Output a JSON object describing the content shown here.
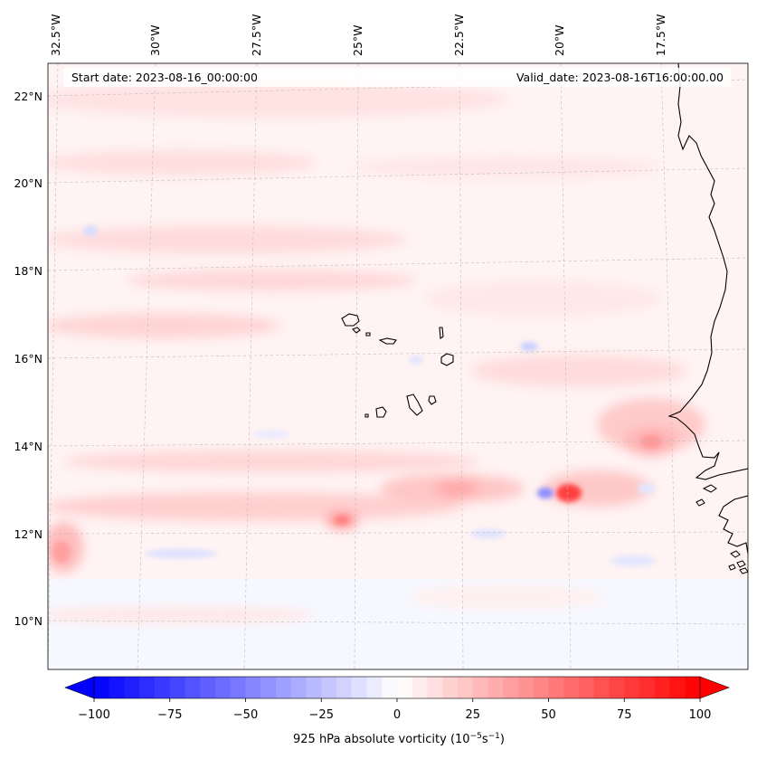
{
  "header": {
    "start_date": "Start date: 2023-08-16_00:00:00",
    "valid_date": "Valid_date: 2023-08-16T16:00:00.00"
  },
  "axes": {
    "lon_labels": [
      "32.5°W",
      "30°W",
      "27.5°W",
      "25°W",
      "22.5°W",
      "20°W",
      "17.5°W"
    ],
    "lat_labels": [
      "22°N",
      "20°N",
      "18°N",
      "16°N",
      "14°N",
      "12°N",
      "10°N"
    ]
  },
  "colorbar": {
    "ticks": [
      "−100",
      "−75",
      "−50",
      "−25",
      "0",
      "25",
      "50",
      "75",
      "100"
    ],
    "title_main": "925 hPa absolute vorticity (10",
    "title_exp1": "−5",
    "title_mid": "s",
    "title_exp2": "−1",
    "title_end": ")",
    "range": [
      -100,
      100
    ],
    "low_color": "#0000ff",
    "mid_color": "#ffffff",
    "high_color": "#ff0000"
  },
  "map": {
    "coastline_color": "#000000",
    "gridline_color": "#bbbbbb"
  }
}
